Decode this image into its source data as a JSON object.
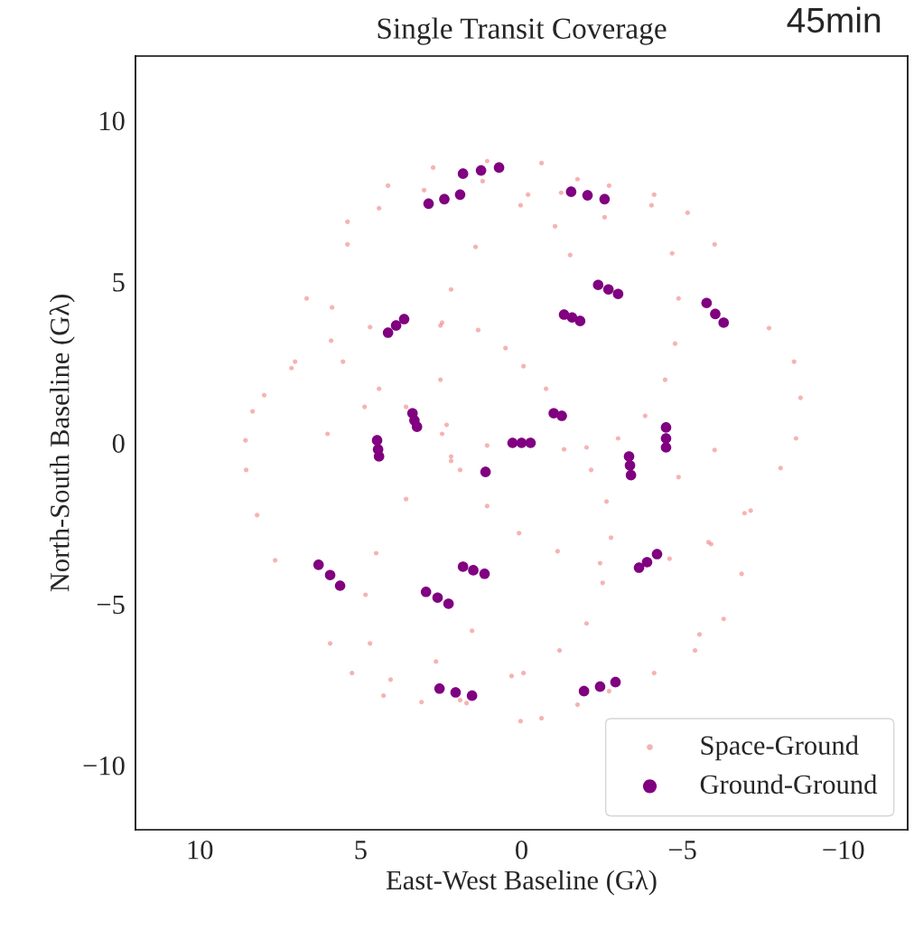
{
  "chart_data": {
    "type": "scatter",
    "title": "Single Transit Coverage",
    "annotations": [
      "45min"
    ],
    "xlabel": "East-West Baseline (Gλ)",
    "ylabel": "North-South Baseline (Gλ)",
    "xlim": [
      12,
      -12
    ],
    "ylim": [
      -12,
      12
    ],
    "xticks": [
      10,
      5,
      0,
      {
        "value": -5,
        "label": "−5"
      },
      {
        "value": -10,
        "label": "−10"
      }
    ],
    "yticks": [
      {
        "value": -10,
        "label": "−10"
      },
      {
        "value": -5,
        "label": "−5"
      },
      0,
      5,
      10
    ],
    "grid": false,
    "legend": "bottom right",
    "marker": "circle",
    "series": [
      {
        "name": "Space-Ground",
        "color": "#f08080",
        "x": [
          7.66,
          8.22,
          8.56,
          8.58,
          8.36,
          8.0,
          7.15,
          5.92,
          4.71,
          2.47,
          1.35,
          0.5,
          -0.06,
          -0.76,
          -6.0,
          -5.16,
          -4.12,
          -2.72,
          -1.23,
          0.03,
          1.43,
          2.19,
          2.52,
          2.52,
          2.33,
          1.91,
          1.07,
          0.08,
          -1.12,
          -2.44,
          -3.65,
          -4.6,
          -5.89,
          -7.12,
          -8.05,
          -8.53,
          -8.67,
          -8.47,
          -7.69,
          5.95,
          5.27,
          4.29,
          3.11,
          1.91,
          -0.06,
          -1.18,
          -2.02,
          -2.52,
          -2.78,
          -2.64,
          -2.16,
          -1.32,
          -0.2,
          1.07,
          2.19,
          6.03,
          7.04,
          6.68,
          5.41,
          4.15,
          2.75,
          1.07,
          -0.62,
          -1.74,
          -2.58,
          4.88,
          5.55,
          5.89,
          5.41,
          4.43,
          3.03,
          1.21,
          -0.2,
          -1.04,
          -1.51,
          -4.04,
          -4.68,
          -4.88,
          -4.77,
          -4.46,
          -3.84,
          -3.0,
          -2.02,
          2.19,
          3.59,
          4.52,
          4.85,
          4.71,
          4.07,
          -6.0,
          -6.93,
          -6.84,
          -6.28,
          -5.39,
          -4.88,
          -5.81,
          -5.53,
          -4.12,
          -2.72,
          -1.74,
          -0.62,
          2.66,
          1.71,
          0.03,
          1.54,
          0.31,
          4.43,
          3.59,
          2.47
        ],
        "values": [
          -3.64,
          -2.24,
          -0.84,
          0.08,
          0.98,
          1.48,
          2.32,
          3.17,
          3.59,
          3.73,
          3.5,
          2.94,
          2.38,
          1.68,
          6.16,
          7.14,
          7.7,
          7.98,
          7.76,
          7.37,
          6.08,
          4.76,
          3.64,
          1.96,
          0.56,
          -0.84,
          -1.96,
          -2.8,
          -3.36,
          -3.73,
          -3.78,
          -3.59,
          -3.14,
          -2.1,
          -0.78,
          0.14,
          1.4,
          2.52,
          3.56,
          -6.22,
          -7.14,
          -7.84,
          -8.04,
          -7.98,
          -7.14,
          -6.44,
          -5.6,
          -4.34,
          -2.94,
          -1.82,
          -0.84,
          -0.2,
          0.08,
          -0.08,
          -0.56,
          0.28,
          2.52,
          4.48,
          6.86,
          7.98,
          8.54,
          8.74,
          8.68,
          8.18,
          7.0,
          1.12,
          2.52,
          4.2,
          6.16,
          7.28,
          7.84,
          8.12,
          7.7,
          6.72,
          5.83,
          7.37,
          5.88,
          4.48,
          3.08,
          1.96,
          0.84,
          0.14,
          -0.14,
          -0.42,
          -1.74,
          -3.42,
          -4.71,
          -6.22,
          -7.34,
          -0.22,
          -2.18,
          -4.06,
          -5.46,
          -6.44,
          -1.06,
          -3.08,
          -5.94,
          -7.14,
          -7.7,
          -8.12,
          -8.54,
          -6.78,
          -8.07,
          -8.63,
          -5.83,
          -7.23,
          1.68,
          1.12,
          0.28
        ]
      },
      {
        "name": "Ground-Ground",
        "color": "#800080",
        "x": [
          1.82,
          1.26,
          0.7,
          2.89,
          2.4,
          1.91,
          -1.54,
          -2.05,
          -2.58,
          -2.38,
          -2.7,
          -3.0,
          -1.32,
          -1.57,
          -1.82,
          -5.75,
          -6.02,
          -6.28,
          4.15,
          3.9,
          3.65,
          3.39,
          3.33,
          3.25,
          4.49,
          4.46,
          4.43,
          0.28,
          0.0,
          -0.28,
          -1.0,
          -1.25,
          1.12,
          -3.34,
          -3.37,
          -3.4,
          -4.49,
          -4.49,
          -4.49,
          -3.65,
          -3.9,
          -4.21,
          6.31,
          5.95,
          5.64,
          1.82,
          1.5,
          1.15,
          2.97,
          2.61,
          2.27,
          2.55,
          2.05,
          1.54,
          -1.94,
          -2.44,
          -2.92
        ],
        "values": [
          8.35,
          8.45,
          8.54,
          7.42,
          7.56,
          7.7,
          7.79,
          7.68,
          7.56,
          4.9,
          4.76,
          4.62,
          3.98,
          3.89,
          3.78,
          4.34,
          4.0,
          3.73,
          3.42,
          3.64,
          3.84,
          0.92,
          0.7,
          0.5,
          0.08,
          -0.2,
          -0.42,
          0.0,
          0.0,
          0.0,
          0.92,
          0.84,
          -0.9,
          -0.42,
          -0.7,
          -1.0,
          0.48,
          0.14,
          -0.14,
          -3.87,
          -3.7,
          -3.45,
          -3.78,
          -4.1,
          -4.43,
          -3.84,
          -3.95,
          -4.06,
          -4.62,
          -4.8,
          -4.99,
          -7.62,
          -7.74,
          -7.84,
          -7.7,
          -7.56,
          -7.42
        ]
      }
    ]
  }
}
